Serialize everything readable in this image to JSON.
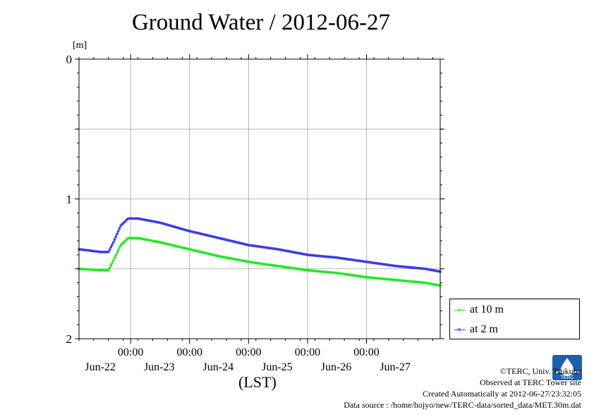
{
  "chart_data": {
    "type": "line",
    "title": "Ground Water / 2012-06-27",
    "ylabel": "[m]",
    "xlabel": "(LST)",
    "ylim": [
      0,
      2
    ],
    "y_inverted": true,
    "y_ticks": [
      "0",
      "1",
      "2"
    ],
    "x_ticks": [
      {
        "time": "00:00",
        "date": "Jun-22"
      },
      {
        "time": "00:00",
        "date": "Jun-23"
      },
      {
        "time": "00:00",
        "date": "Jun-24"
      },
      {
        "time": "00:00",
        "date": "Jun-25"
      },
      {
        "time": "00:00",
        "date": "Jun-26"
      },
      {
        "time": "00:00",
        "date": "Jun-27"
      }
    ],
    "x_range": [
      "2012-06-21 03:00",
      "2012-06-27 06:00"
    ],
    "grid": true,
    "legend_position": "bottom-right",
    "series": [
      {
        "name": "at 10 m",
        "color": "#22e822",
        "points": [
          [
            "2012-06-21 03:00",
            1.5
          ],
          [
            "2012-06-21 12:00",
            1.51
          ],
          [
            "2012-06-21 15:00",
            1.51
          ],
          [
            "2012-06-21 17:00",
            1.44
          ],
          [
            "2012-06-21 20:00",
            1.33
          ],
          [
            "2012-06-21 23:00",
            1.28
          ],
          [
            "2012-06-22 03:00",
            1.28
          ],
          [
            "2012-06-22 12:00",
            1.31
          ],
          [
            "2012-06-23 00:00",
            1.36
          ],
          [
            "2012-06-23 12:00",
            1.41
          ],
          [
            "2012-06-24 00:00",
            1.45
          ],
          [
            "2012-06-24 12:00",
            1.48
          ],
          [
            "2012-06-25 00:00",
            1.51
          ],
          [
            "2012-06-25 12:00",
            1.53
          ],
          [
            "2012-06-26 00:00",
            1.56
          ],
          [
            "2012-06-26 12:00",
            1.58
          ],
          [
            "2012-06-27 00:00",
            1.6
          ],
          [
            "2012-06-27 06:00",
            1.62
          ]
        ]
      },
      {
        "name": "at 2 m",
        "color": "#3a3ae8",
        "points": [
          [
            "2012-06-21 03:00",
            1.36
          ],
          [
            "2012-06-21 12:00",
            1.38
          ],
          [
            "2012-06-21 15:00",
            1.38
          ],
          [
            "2012-06-21 17:00",
            1.31
          ],
          [
            "2012-06-21 20:00",
            1.19
          ],
          [
            "2012-06-21 23:00",
            1.14
          ],
          [
            "2012-06-22 03:00",
            1.14
          ],
          [
            "2012-06-22 12:00",
            1.17
          ],
          [
            "2012-06-23 00:00",
            1.23
          ],
          [
            "2012-06-23 12:00",
            1.28
          ],
          [
            "2012-06-24 00:00",
            1.33
          ],
          [
            "2012-06-24 12:00",
            1.36
          ],
          [
            "2012-06-25 00:00",
            1.4
          ],
          [
            "2012-06-25 12:00",
            1.42
          ],
          [
            "2012-06-26 00:00",
            1.45
          ],
          [
            "2012-06-26 12:00",
            1.48
          ],
          [
            "2012-06-27 00:00",
            1.5
          ],
          [
            "2012-06-27 06:00",
            1.52
          ]
        ]
      }
    ]
  },
  "credits": {
    "copyright": "©TERC, Univ. Tsukuba",
    "observed": "Observed at TERC Tower site",
    "created": "Created Automatically at 2012-06-27/23:32:05",
    "source": "Data source : /home/hojyo/new/TERC-data/sorted_data/MET.30m.dat"
  },
  "logo": {
    "text": "TERC",
    "color": "#1a5fb0"
  }
}
